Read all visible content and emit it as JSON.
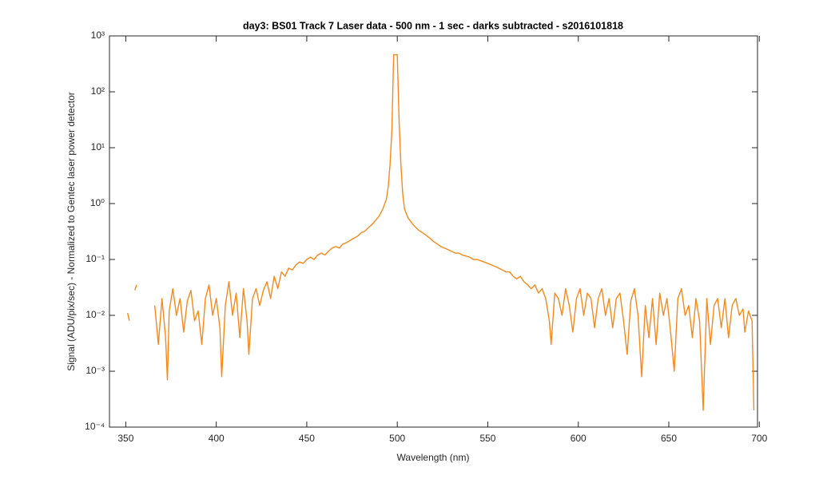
{
  "chart_data": {
    "type": "line",
    "title": "day3: BS01  Track 7 Laser data - 500 nm - 1 sec - darks subtracted - s2016101818",
    "x_label": "Wavelength (nm)",
    "y_label": "Signal (ADU/pix/sec) - Normalized to Gentec laser power detector",
    "yscale": "log",
    "xlim": [
      341,
      699
    ],
    "ylim": [
      0.0001,
      1000
    ],
    "xticks": [
      350,
      400,
      450,
      500,
      550,
      600,
      650,
      700
    ],
    "yticks": [
      {
        "value": 0.0001,
        "label": "10⁻⁴"
      },
      {
        "value": 0.001,
        "label": "10⁻³"
      },
      {
        "value": 0.01,
        "label": "10⁻²"
      },
      {
        "value": 0.1,
        "label": "10⁻¹"
      },
      {
        "value": 1,
        "label": "10⁰"
      },
      {
        "value": 10,
        "label": "10¹"
      },
      {
        "value": 100,
        "label": "10²"
      },
      {
        "value": 1000,
        "label": "10³"
      }
    ],
    "series": [
      {
        "color": "#f7891a",
        "x": [
          351,
          352,
          353,
          355,
          356,
          357,
          366,
          368,
          370,
          372,
          373,
          374,
          376,
          378,
          380,
          382,
          384,
          386,
          388,
          390,
          392,
          394,
          396,
          398,
          400,
          402,
          403,
          405,
          407,
          409,
          411,
          413,
          415,
          417,
          418,
          420,
          422,
          424,
          426,
          428,
          430,
          432,
          434,
          436,
          438,
          440,
          442,
          444,
          446,
          448,
          450,
          452,
          454,
          456,
          458,
          460,
          462,
          464,
          466,
          468,
          470,
          472,
          474,
          476,
          478,
          480,
          482,
          484,
          486,
          488,
          490,
          492,
          494,
          495,
          496,
          497,
          498,
          499,
          500,
          501,
          502,
          503,
          504,
          506,
          508,
          510,
          512,
          514,
          516,
          518,
          520,
          522,
          524,
          526,
          528,
          530,
          532,
          534,
          536,
          538,
          540,
          542,
          544,
          546,
          548,
          550,
          552,
          554,
          556,
          558,
          560,
          562,
          564,
          566,
          568,
          570,
          572,
          574,
          576,
          578,
          580,
          582,
          584,
          585,
          587,
          589,
          591,
          593,
          595,
          597,
          599,
          601,
          603,
          605,
          607,
          609,
          611,
          613,
          615,
          617,
          619,
          621,
          623,
          625,
          627,
          629,
          631,
          633,
          635,
          637,
          639,
          641,
          643,
          645,
          647,
          649,
          651,
          653,
          655,
          657,
          659,
          661,
          663,
          665,
          667,
          669,
          671,
          673,
          675,
          677,
          679,
          681,
          683,
          685,
          687,
          689,
          691,
          692,
          694,
          696,
          697
        ],
        "values": [
          0.011,
          0.008,
          null,
          0.028,
          0.035,
          null,
          0.015,
          0.003,
          0.02,
          0.004,
          0.0007,
          0.012,
          0.03,
          0.01,
          0.02,
          0.005,
          0.018,
          0.028,
          0.008,
          0.012,
          0.003,
          0.02,
          0.035,
          0.01,
          0.02,
          0.006,
          0.0008,
          0.015,
          0.04,
          0.01,
          0.025,
          0.004,
          0.03,
          0.008,
          0.002,
          0.02,
          0.03,
          0.015,
          0.028,
          0.04,
          0.02,
          0.05,
          0.03,
          0.06,
          0.05,
          0.07,
          0.065,
          0.08,
          0.09,
          0.085,
          0.1,
          0.11,
          0.1,
          0.12,
          0.13,
          0.12,
          0.14,
          0.16,
          0.17,
          0.16,
          0.19,
          0.2,
          0.22,
          0.24,
          0.26,
          0.3,
          0.32,
          0.37,
          0.42,
          0.5,
          0.6,
          0.8,
          1.2,
          2,
          5,
          20,
          460,
          460,
          460,
          30,
          5,
          1.5,
          0.8,
          0.55,
          0.45,
          0.38,
          0.33,
          0.3,
          0.27,
          0.24,
          0.21,
          0.19,
          0.17,
          0.16,
          0.15,
          0.14,
          0.13,
          0.13,
          0.12,
          0.115,
          0.11,
          0.1,
          0.1,
          0.095,
          0.09,
          0.085,
          0.08,
          0.075,
          0.07,
          0.065,
          0.06,
          0.06,
          0.05,
          0.045,
          0.05,
          0.04,
          0.035,
          0.03,
          0.035,
          0.025,
          0.03,
          0.02,
          0.008,
          0.003,
          0.025,
          0.02,
          0.01,
          0.03,
          0.015,
          0.005,
          0.02,
          0.03,
          0.01,
          0.025,
          0.02,
          0.006,
          0.02,
          0.03,
          0.01,
          0.02,
          0.006,
          0.02,
          0.025,
          0.008,
          0.002,
          0.018,
          0.03,
          0.01,
          0.0008,
          0.015,
          0.004,
          0.02,
          0.003,
          0.025,
          0.01,
          0.02,
          0.005,
          0.001,
          0.02,
          0.03,
          0.01,
          0.015,
          0.004,
          0.02,
          0.008,
          0.0002,
          0.02,
          0.003,
          0.015,
          0.02,
          0.006,
          0.02,
          0.004,
          0.015,
          0.02,
          0.01,
          0.013,
          0.005,
          0.012,
          0.008,
          0.0002
        ]
      }
    ]
  }
}
